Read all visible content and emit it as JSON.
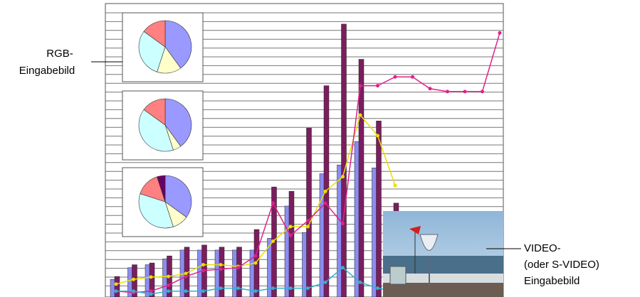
{
  "labels": {
    "rgb": [
      "RGB-",
      "Eingabebild"
    ],
    "video": [
      "VIDEO-",
      "(oder S-VIDEO)",
      "Eingabebild"
    ]
  },
  "screen": {
    "type": "bar",
    "ylim": [
      0,
      100
    ],
    "series": [
      {
        "color": "#8c8cf0",
        "values": [
          6,
          10,
          11,
          13,
          16,
          16,
          16,
          16,
          16,
          20,
          31,
          22,
          42,
          45,
          53,
          44,
          28
        ]
      },
      {
        "color": "#7a1e5e",
        "values": [
          7,
          11,
          11.6,
          14,
          17,
          17.7,
          17,
          17,
          23,
          37.5,
          36,
          57.6,
          72,
          93,
          81,
          60,
          32
        ]
      }
    ],
    "lines": [
      {
        "color": "#e6e000",
        "values": [
          4.4,
          6,
          6.8,
          7,
          8,
          11,
          11,
          10.4,
          11.6,
          19,
          24,
          24,
          36,
          41,
          62,
          55,
          38
        ]
      },
      {
        "color": "#e0208a",
        "values": [
          2,
          1.5,
          2,
          4,
          7,
          9,
          9.5,
          10,
          14,
          32,
          21,
          26,
          32,
          25,
          72,
          72,
          75,
          75,
          71,
          70,
          70,
          70,
          90
        ]
      },
      {
        "color": "#30b0d0",
        "values": [
          2,
          2,
          1,
          2,
          2,
          2,
          3,
          3,
          2,
          3,
          3,
          3,
          5,
          10,
          5,
          3,
          2
        ]
      }
    ],
    "pie_colors": [
      "#9999ff",
      "#ffffcc",
      "#ccffff",
      "#ff8080",
      "#660066"
    ],
    "pies": [
      {
        "values": [
          40,
          15,
          30,
          15
        ]
      },
      {
        "values": [
          40,
          5,
          40,
          15
        ]
      },
      {
        "values": [
          35,
          10,
          35,
          15,
          5
        ]
      }
    ]
  }
}
